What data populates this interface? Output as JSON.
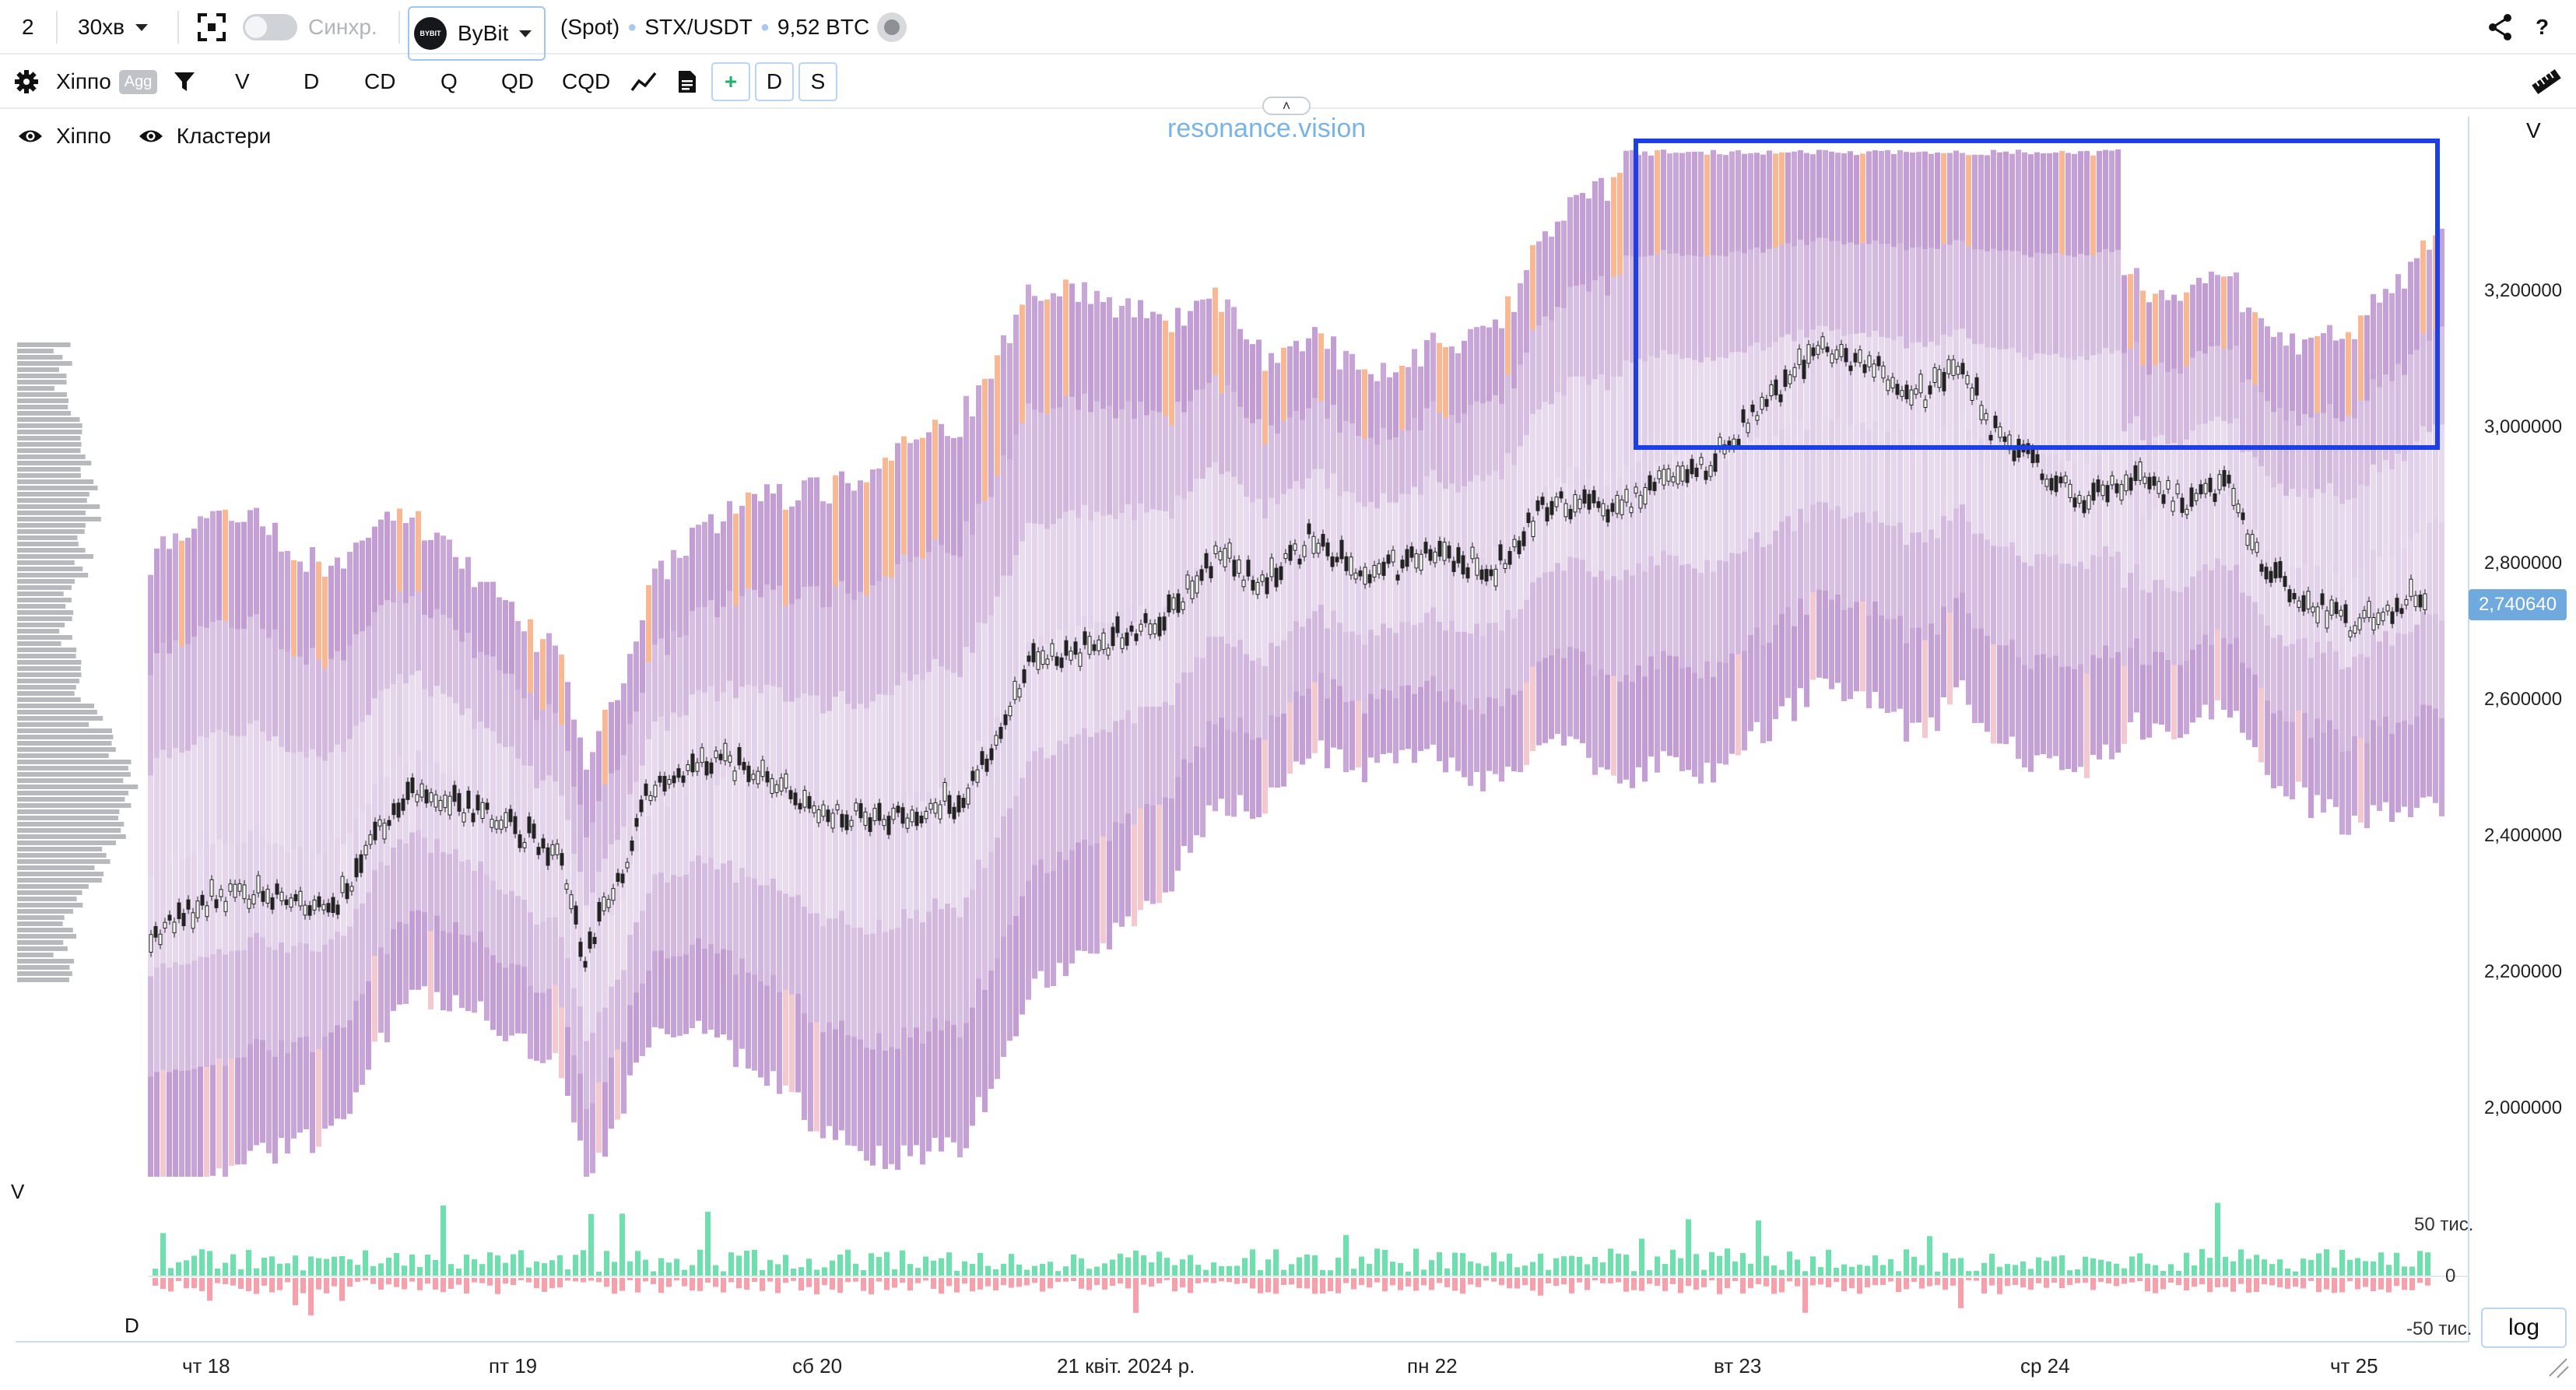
{
  "toolbar1": {
    "layout_count": "2",
    "interval": "30хв",
    "sync_label": "Синхр.",
    "exchange_logo_text": "BYBIT",
    "exchange": "ByBit",
    "market": "(Spot)",
    "symbol": "STX/USDT",
    "volume": "9,52 BTC",
    "help": "?",
    "icons": [
      "fullscreen-icon",
      "share-icon"
    ]
  },
  "toolbar2": {
    "indicator": "Хіппо",
    "agg": "Agg",
    "buttons": [
      "V",
      "D",
      "CD",
      "Q",
      "QD",
      "CQD"
    ],
    "buttons_right": [
      "D",
      "S"
    ],
    "icons": [
      "gear-icon",
      "filter-icon",
      "line-chart-icon",
      "document-icon",
      "plus-icon",
      "ruler-icon"
    ]
  },
  "legend": {
    "items": [
      "Хіппо",
      "Кластери"
    ]
  },
  "watermark": "resonance.vision",
  "price_axis": {
    "label": "V",
    "ticks": [
      "3,200000",
      "3,000000",
      "2,800000",
      "2,600000",
      "2,400000",
      "2,200000",
      "2,000000"
    ],
    "current_price": "2,740640"
  },
  "volume_axis": {
    "v_label": "V",
    "d_label": "D",
    "ticks": [
      "50 тис.",
      "0",
      "-50 тис."
    ]
  },
  "time_axis": {
    "ticks": [
      "чт 18",
      "пт 19",
      "сб 20",
      "21 квіт. 2024 р.",
      "пн 22",
      "вт 23",
      "ср 24",
      "чт 25"
    ]
  },
  "log_button": "log",
  "colors": {
    "accent": "#1d3fe6",
    "purple": "#a872c0",
    "orange": "#f5a070",
    "bull": "#6fdfb0",
    "bear": "#f5a0aa",
    "price_badge": "#6fa9de"
  }
}
